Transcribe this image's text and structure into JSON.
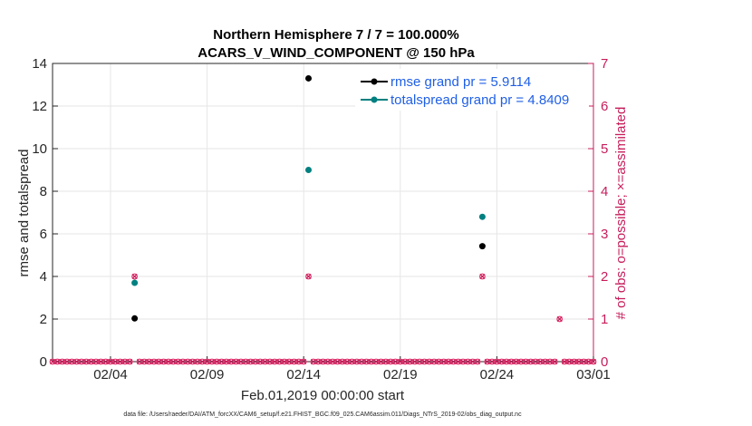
{
  "chart_data": {
    "type": "scatter",
    "title": [
      "Northern Hemisphere 7 / 7 = 100.000%",
      "ACARS_V_WIND_COMPONENT @ 150 hPa"
    ],
    "xlabel": "Feb.01,2019 00:00:00 start",
    "ylabel_left": "rmse and totalspread",
    "ylabel_right": "# of obs: o=possible; ×=assimilated",
    "xlim": [
      0,
      28
    ],
    "ylim_left": [
      0,
      14
    ],
    "ylim_right": [
      0,
      7
    ],
    "x_ticks": [
      {
        "value": 3,
        "label": "02/04"
      },
      {
        "value": 8,
        "label": "02/09"
      },
      {
        "value": 13,
        "label": "02/14"
      },
      {
        "value": 18,
        "label": "02/19"
      },
      {
        "value": 23,
        "label": "02/24"
      },
      {
        "value": 28,
        "label": "03/01"
      }
    ],
    "y_ticks_left": [
      0,
      2,
      4,
      6,
      8,
      10,
      12,
      14
    ],
    "y_ticks_right": [
      0,
      1,
      2,
      3,
      4,
      5,
      6,
      7
    ],
    "grid": true,
    "legend_position": "top-right",
    "series": [
      {
        "name": "rmse",
        "axis": "left",
        "color": "#000000",
        "points": [
          {
            "x": 4.25,
            "y": 2.03
          },
          {
            "x": 13.25,
            "y": 13.3
          },
          {
            "x": 22.25,
            "y": 5.42
          }
        ]
      },
      {
        "name": "totalspread",
        "axis": "left",
        "color": "#008080",
        "points": [
          {
            "x": 4.25,
            "y": 3.7
          },
          {
            "x": 13.25,
            "y": 9.0
          },
          {
            "x": 22.25,
            "y": 6.8
          }
        ]
      },
      {
        "name": "obs_possible",
        "axis": "right",
        "color": "#e8336d",
        "x_start": 0,
        "x_end": 28,
        "x_step": 0.25,
        "default": 0,
        "nonzero": [
          {
            "x": 4.25,
            "y": 2
          },
          {
            "x": 13.25,
            "y": 2
          },
          {
            "x": 22.25,
            "y": 2
          },
          {
            "x": 26.25,
            "y": 1
          }
        ]
      },
      {
        "name": "obs_assimilated",
        "axis": "right",
        "color": "#c71c5b",
        "x_start": 0,
        "x_end": 28,
        "x_step": 0.25,
        "default": 0,
        "nonzero": [
          {
            "x": 4.25,
            "y": 2
          },
          {
            "x": 13.25,
            "y": 2
          },
          {
            "x": 22.25,
            "y": 2
          },
          {
            "x": 26.25,
            "y": 1
          }
        ]
      }
    ],
    "legend": [
      {
        "label": "rmse grand pr = 5.9114",
        "color": "#000000"
      },
      {
        "label": "totalspread grand pr = 4.8409",
        "color": "#008080"
      }
    ],
    "footer": "data file: /Users/raeder/DAI/ATM_forcXX/CAM6_setup/f.e21.FHIST_BGC.f09_025.CAM6assim.011/Diags_NTrS_2019-02/obs_diag_output.nc"
  }
}
